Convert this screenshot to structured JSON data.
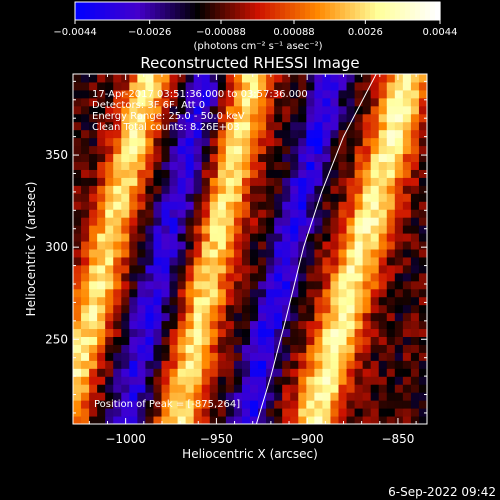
{
  "chart_data": {
    "type": "heatmap",
    "title": "Reconstructed RHESSI Image",
    "xlabel": "Heliocentric X (arcsec)",
    "ylabel": "Heliocentric Y (arcsec)",
    "xlim": [
      -1029,
      -834
    ],
    "ylim": [
      204,
      394
    ],
    "x_ticks": [
      -1000,
      -950,
      -900,
      -850
    ],
    "x_tick_labels": [
      "−1000",
      "−950",
      "−900",
      "−850"
    ],
    "y_ticks": [
      250,
      300,
      350
    ],
    "y_tick_labels": [
      "250",
      "300",
      "350"
    ],
    "colorbar": {
      "min": -0.0044,
      "max": 0.0044,
      "ticks": [
        -0.0044,
        -0.0026,
        -0.00088,
        0.00088,
        0.0026,
        0.0044
      ],
      "tick_labels": [
        "−0.0044",
        "−0.0026",
        "−0.00088",
        "0.00088",
        "0.0026",
        "0.0044"
      ],
      "units": "(photons cm⁻² s⁻¹ asec⁻²)",
      "colors": [
        "#0000ff",
        "#4400cc",
        "#000000",
        "#cc1100",
        "#ff8800",
        "#ffff99",
        "#ffffff"
      ]
    },
    "annotations": [
      "17-Apr-2017 03:51:36.000 to 03:57:36.000",
      "Detectors: 3F 6F, Att 0",
      "Energy Range: 25.0 - 50.0 keV",
      "Clean     Total counts: 8.26E+03"
    ],
    "peak_label": "Position of Peak = [-875,264]",
    "peak": [
      -875,
      264
    ],
    "limb_curve": [
      [
        -928,
        204
      ],
      [
        -920,
        230
      ],
      [
        -912,
        260
      ],
      [
        -902,
        300
      ],
      [
        -892,
        330
      ],
      [
        -880,
        360
      ],
      [
        -862,
        394
      ]
    ],
    "bright_stripes": [
      {
        "x_offset": -1010,
        "slope": 0.25,
        "width": 12,
        "intensity": 0.88
      },
      {
        "x_offset": -950,
        "slope": 0.22,
        "width": 12,
        "intensity": 0.86
      },
      {
        "x_offset": -870,
        "slope": 0.28,
        "width": 14,
        "intensity": 0.95
      }
    ],
    "dark_stripes": [
      {
        "x_offset": -978,
        "slope": 0.24,
        "width": 12,
        "intensity": -0.55
      },
      {
        "x_offset": -910,
        "slope": 0.25,
        "width": 12,
        "intensity": -0.6
      }
    ]
  },
  "footer_timestamp": "6-Sep-2022 09:42"
}
